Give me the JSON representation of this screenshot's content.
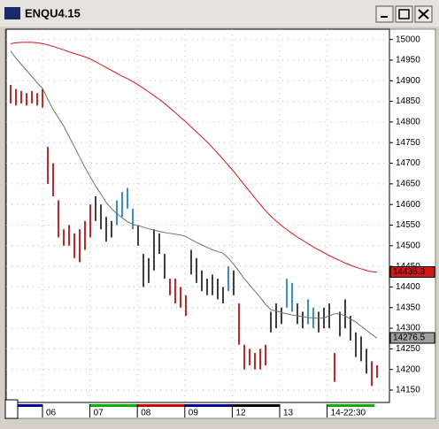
{
  "chart_data": {
    "type": "ohlc",
    "title": "ENQU4.15",
    "high": [
      14890,
      14880,
      14875,
      14870,
      14875,
      14870,
      14880,
      14740,
      14700,
      14610,
      14540,
      14550,
      14530,
      14540,
      14560,
      14600,
      14620,
      14600,
      14570,
      14560,
      14610,
      14630,
      14640,
      14590,
      14550,
      14480,
      14470,
      14540,
      14530,
      14480,
      14420,
      14420,
      14400,
      14380,
      14490,
      14470,
      14440,
      14420,
      14430,
      14420,
      14400,
      14450,
      14440,
      14360,
      14260,
      14250,
      14240,
      14250,
      14260,
      14340,
      14360,
      14350,
      14420,
      14410,
      14360,
      14340,
      14370,
      14350,
      14340,
      14350,
      14360,
      14240,
      14340,
      14370,
      14330,
      14290,
      14280,
      14250,
      14220,
      14210
    ],
    "low": [
      14845,
      14840,
      14845,
      14840,
      14845,
      14840,
      14835,
      14650,
      14620,
      14520,
      14500,
      14500,
      14470,
      14460,
      14490,
      14520,
      14560,
      14540,
      14510,
      14520,
      14550,
      14570,
      14590,
      14540,
      14500,
      14400,
      14410,
      14440,
      14480,
      14420,
      14380,
      14360,
      14350,
      14330,
      14430,
      14410,
      14390,
      14380,
      14380,
      14370,
      14360,
      14390,
      14380,
      14260,
      14200,
      14210,
      14200,
      14200,
      14210,
      14290,
      14300,
      14310,
      14350,
      14340,
      14310,
      14300,
      14310,
      14300,
      14290,
      14300,
      14300,
      14170,
      14280,
      14300,
      14270,
      14230,
      14220,
      14190,
      14160,
      14180
    ],
    "bar_colors": [
      "#c0282c",
      "#c0282c",
      "#c0282c",
      "#c0282c",
      "#c0282c",
      "#c0282c",
      "#c0282c",
      "#c0282c",
      "#c0282c",
      "#c0282c",
      "#c0282c",
      "#c0282c",
      "#c0282c",
      "#c0282c",
      "#c0282c",
      "#c0282c",
      "#404040",
      "#404040",
      "#404040",
      "#404040",
      "#3a8fd0",
      "#3a8fd0",
      "#3a8fd0",
      "#3a8fd0",
      "#404040",
      "#404040",
      "#404040",
      "#404040",
      "#404040",
      "#404040",
      "#c0282c",
      "#c0282c",
      "#c0282c",
      "#c0282c",
      "#404040",
      "#404040",
      "#404040",
      "#404040",
      "#404040",
      "#404040",
      "#404040",
      "#3a8fd0",
      "#404040",
      "#c0282c",
      "#c0282c",
      "#c0282c",
      "#c0282c",
      "#c0282c",
      "#c0282c",
      "#404040",
      "#404040",
      "#404040",
      "#3a8fd0",
      "#3a8fd0",
      "#404040",
      "#404040",
      "#3a8fd0",
      "#3a8fd0",
      "#404040",
      "#404040",
      "#404040",
      "#c0282c",
      "#404040",
      "#404040",
      "#404040",
      "#404040",
      "#404040",
      "#404040",
      "#c0282c",
      "#c0282c"
    ],
    "series": [
      {
        "color": "#d01818",
        "values": [
          14990,
          14992,
          14993,
          14993,
          14993,
          14992,
          14990,
          14987,
          14983,
          14979,
          14975,
          14970,
          14966,
          14962,
          14958,
          14953,
          14946,
          14939,
          14932,
          14925,
          14918,
          14911,
          14905,
          14898,
          14890,
          14882,
          14873,
          14864,
          14855,
          14845,
          14834,
          14823,
          14811,
          14800,
          14788,
          14776,
          14764,
          14752,
          14738,
          14724,
          14710,
          14695,
          14680,
          14664,
          14648,
          14632,
          14616,
          14600,
          14585,
          14572,
          14560,
          14549,
          14539,
          14530,
          14521,
          14513,
          14505,
          14497,
          14490,
          14483,
          14476,
          14470,
          14464,
          14458,
          14453,
          14448,
          14444,
          14440,
          14437,
          14436
        ]
      },
      {
        "color": "#707070",
        "values": [
          14972,
          14955,
          14940,
          14925,
          14910,
          14895,
          14882,
          14855,
          14830,
          14810,
          14790,
          14765,
          14740,
          14715,
          14690,
          14667,
          14645,
          14625,
          14605,
          14590,
          14578,
          14568,
          14558,
          14552,
          14549,
          14545,
          14541,
          14538,
          14535,
          14532,
          14530,
          14528,
          14526,
          14522,
          14515,
          14508,
          14502,
          14496,
          14490,
          14486,
          14482,
          14470,
          14455,
          14438,
          14420,
          14405,
          14390,
          14375,
          14358,
          14345,
          14342,
          14338,
          14335,
          14332,
          14330,
          14328,
          14326,
          14325,
          14324,
          14325,
          14330,
          14335,
          14335,
          14330,
          14322,
          14315,
          14305,
          14295,
          14285,
          14276
        ]
      }
    ],
    "x_labels": [
      "06",
      "07",
      "08",
      "09",
      "12",
      "13",
      "14-22:30"
    ],
    "x_band_colors": [
      "#0000a0",
      "#ffffff",
      "#00b000",
      "#d00000",
      "#0000a0",
      "#000000",
      "#ffffff",
      "#00b000"
    ],
    "ylim": [
      14120,
      15025
    ],
    "yticks": [
      14150,
      14200,
      14250,
      14300,
      14350,
      14400,
      14450,
      14500,
      14550,
      14600,
      14650,
      14700,
      14750,
      14800,
      14850,
      14900,
      14950,
      15000
    ],
    "grid": true,
    "price_markers": [
      {
        "value": 14436.3,
        "label": "14436.3",
        "color": "#d01818"
      },
      {
        "value": 14276.5,
        "label": "14276.5",
        "color": "#a0a0a0"
      }
    ]
  }
}
